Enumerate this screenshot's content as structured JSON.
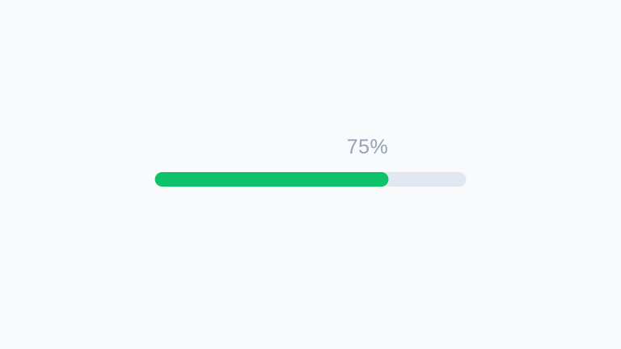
{
  "page": {
    "background_color": "#f8fafc"
  },
  "progress": {
    "label": "75%",
    "percent": 75,
    "fill_color": "#0dc269",
    "track_color": "#e2e8f0",
    "label_color": "#94a3b8"
  }
}
